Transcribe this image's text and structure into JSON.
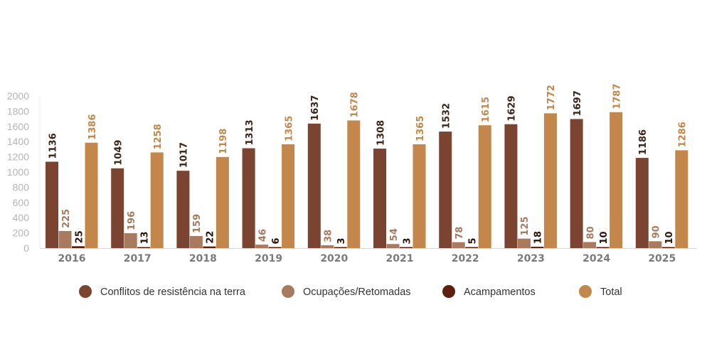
{
  "chart_data": {
    "type": "bar",
    "categories": [
      "2016",
      "2017",
      "2018",
      "2019",
      "2020",
      "2021",
      "2022",
      "2023",
      "2024",
      "2025"
    ],
    "series": [
      {
        "name": "Conflitos de resistência na terra",
        "color": "#7a4430",
        "label_color": "#3b2418",
        "values": [
          1136,
          1049,
          1017,
          1313,
          1637,
          1308,
          1532,
          1629,
          1697,
          1186
        ]
      },
      {
        "name": "Ocupações/Retomadas",
        "color": "#a97a5e",
        "label_color": "#a97a5e",
        "values": [
          225,
          196,
          159,
          46,
          38,
          54,
          78,
          125,
          80,
          90
        ]
      },
      {
        "name": "Acampamentos",
        "color": "#5e1f0e",
        "label_color": "#2a120a",
        "values": [
          25,
          13,
          22,
          6,
          3,
          3,
          5,
          18,
          10,
          10
        ]
      },
      {
        "name": "Total",
        "color": "#c4874b",
        "label_color": "#c4874b",
        "values": [
          1386,
          1258,
          1198,
          1365,
          1678,
          1365,
          1615,
          1772,
          1787,
          1286
        ]
      }
    ],
    "yticks": [
      "0",
      "200",
      "400",
      "600",
      "800",
      "1000",
      "1200",
      "1400",
      "1600",
      "1800",
      "2000"
    ],
    "ylim": [
      0,
      2000
    ],
    "grid": false,
    "legend": "bottom",
    "data_labels": "rotated vertical above bars"
  }
}
